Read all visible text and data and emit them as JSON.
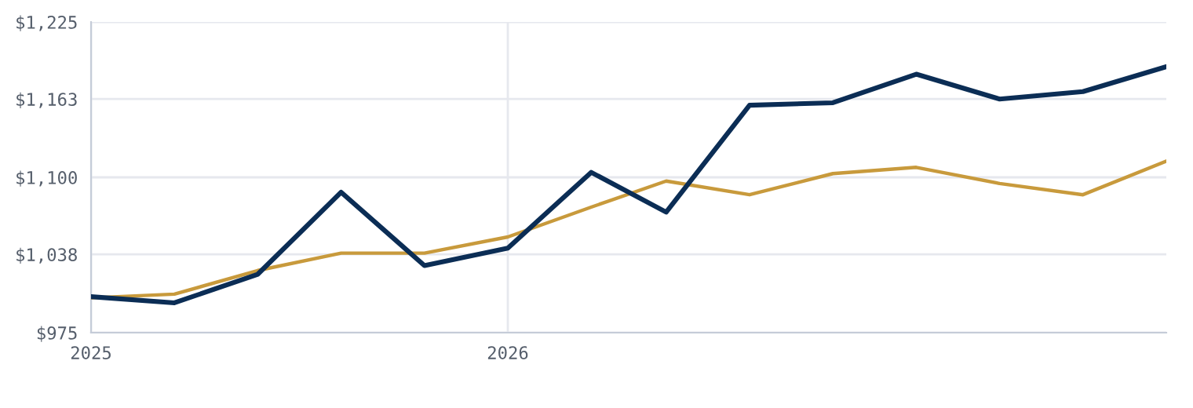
{
  "chart_data": {
    "type": "line",
    "x": [
      2025,
      2025.2,
      2025.4,
      2025.6,
      2025.8,
      2026,
      2026.2,
      2026.38,
      2026.58,
      2026.78,
      2026.98,
      2027.18,
      2027.38,
      2027.58
    ],
    "series": [
      {
        "color": "#0b2d55",
        "values": [
          1004,
          999,
          1022,
          1088,
          1029,
          1043,
          1104,
          1072,
          1158,
          1160,
          1183,
          1163,
          1169,
          1189
        ]
      },
      {
        "color": "#c89a3c",
        "values": [
          1003,
          1006,
          1025,
          1039,
          1039,
          1052,
          1076,
          1097,
          1086,
          1103,
          1108,
          1095,
          1086,
          1113
        ]
      }
    ],
    "xlim": [
      2025,
      2027.58
    ],
    "xticks": [
      2025,
      2026
    ],
    "ylim": [
      975,
      1225
    ],
    "yticks": [
      {
        "value": 975,
        "label": "$975"
      },
      {
        "value": 1038,
        "label": "$1,038"
      },
      {
        "value": 1100,
        "label": "$1,100"
      },
      {
        "value": 1163,
        "label": "$1,163"
      },
      {
        "value": 1225,
        "label": "$1,225"
      }
    ],
    "grid": true,
    "marker": "none",
    "line_style": "solid"
  }
}
